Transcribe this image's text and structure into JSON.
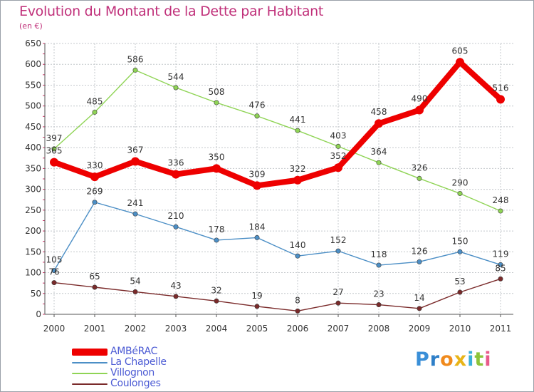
{
  "chart_data": {
    "type": "line",
    "title": "Evolution du Montant de la Dette par Habitant",
    "subtitle": "(en €)",
    "x": [
      "2000",
      "2001",
      "2002",
      "2003",
      "2004",
      "2005",
      "2006",
      "2007",
      "2008",
      "2009",
      "2010",
      "2011"
    ],
    "ylim": [
      0,
      650
    ],
    "yticks": [
      "0",
      "50",
      "100",
      "150",
      "200",
      "250",
      "300",
      "350",
      "400",
      "450",
      "500",
      "550",
      "600",
      "650"
    ],
    "grid": true,
    "legend_position": "bottom-left",
    "series": [
      {
        "name": "AMBéRAC",
        "color": "#ee0000",
        "values": [
          365,
          330,
          367,
          336,
          350,
          309,
          322,
          352,
          458,
          490,
          605,
          516
        ]
      },
      {
        "name": "La Chapelle",
        "color": "#4c8fc6",
        "values": [
          105,
          269,
          241,
          210,
          178,
          184,
          140,
          152,
          118,
          126,
          150,
          119
        ]
      },
      {
        "name": "Villognon",
        "color": "#8fd455",
        "values": [
          397,
          485,
          586,
          544,
          508,
          476,
          441,
          403,
          364,
          326,
          290,
          248
        ]
      },
      {
        "name": "Coulonges",
        "color": "#7a2a2a",
        "values": [
          76,
          65,
          54,
          43,
          32,
          19,
          8,
          27,
          23,
          14,
          53,
          85
        ]
      }
    ]
  },
  "brand": {
    "letters": [
      "P",
      "r",
      "o",
      "x",
      "i",
      "t",
      "i"
    ],
    "colors": [
      "#3a8fd8",
      "#2e7fc8",
      "#f08a1c",
      "#e8b418",
      "#3ab0d8",
      "#8cc43a",
      "#e85a8a"
    ]
  }
}
